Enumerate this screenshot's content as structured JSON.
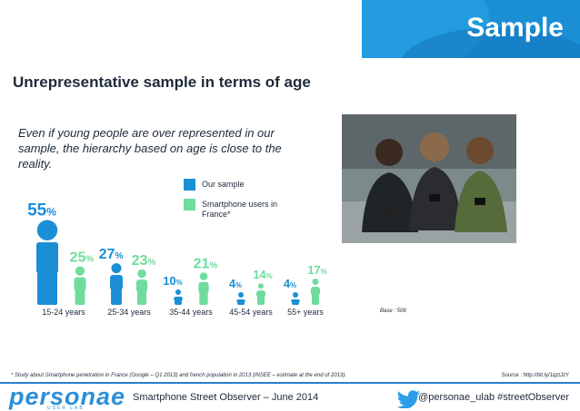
{
  "banner": {
    "title": "Sample"
  },
  "heading": "Unrepresentative sample in terms of age",
  "intro": "Even if young people are over represented in our sample, the hierarchy based on age is close to the reality.",
  "legend": {
    "our_sample": "Our  sample",
    "smartphone_users": "Smartphone users in France*"
  },
  "colors": {
    "our_sample": "#1b8fd6",
    "smartphone_users": "#6fdc9e",
    "accent": "#2b7fc7"
  },
  "chart_data": {
    "type": "bar",
    "unit": "%",
    "categories": [
      "15-24 years",
      "25-34 years",
      "35-44 years",
      "45-54 years",
      "55+ years"
    ],
    "series": [
      {
        "name": "Our  sample",
        "values": [
          55,
          27,
          10,
          4,
          4
        ]
      },
      {
        "name": "Smartphone users in France*",
        "values": [
          25,
          23,
          21,
          14,
          17
        ]
      }
    ],
    "legend": "top-right"
  },
  "photo": {
    "icon": "people-with-smartphones-photo"
  },
  "base_note": "Base : 506",
  "footnote": "* Study about Smartphone penetration in France (Google – Q1 2013) and french population in 2013 (INSEE – estimate at the end of 2013).",
  "source": "Source : http://bit.ly/1qztJzY",
  "footer": {
    "logo": "personae",
    "logo_sub": "USER LAB",
    "center": "Smartphone Street Observer – June 2014",
    "right": "@personae_ulab #streetObserver",
    "twitter_icon": "twitter-bird-icon"
  }
}
